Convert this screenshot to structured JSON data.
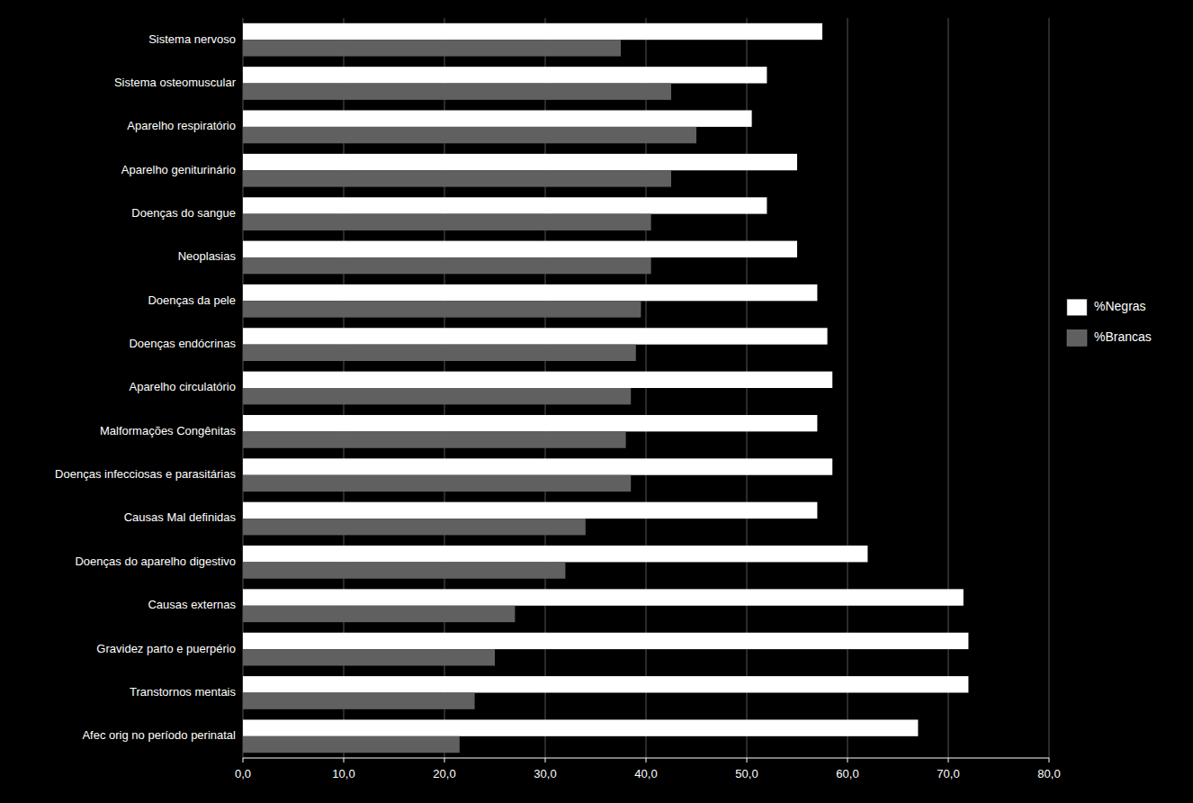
{
  "chart_data": {
    "type": "bar",
    "orientation": "horizontal",
    "categories": [
      "Sistema nervoso",
      "Sistema osteomuscular",
      "Aparelho respiratório",
      "Aparelho geniturinário",
      "Doenças do sangue",
      "Neoplasias",
      "Doenças da pele",
      "Doenças endócrinas",
      "Aparelho circulatório",
      "Malformações Congênitas",
      "Doenças infecciosas e parasitárias",
      "Causas Mal definidas",
      "Doenças do aparelho digestivo",
      "Causas externas",
      "Gravidez parto e puerpério",
      "Transtornos mentais",
      "Afec orig no período perinatal"
    ],
    "series": [
      {
        "name": "%Negras",
        "color": "#ffffff",
        "values": [
          57.5,
          52.0,
          50.5,
          55.0,
          52.0,
          55.0,
          57.0,
          58.0,
          58.5,
          57.0,
          58.5,
          57.0,
          62.0,
          71.5,
          72.0,
          72.0,
          67.0
        ]
      },
      {
        "name": "%Brancas",
        "color": "#606060",
        "values": [
          37.5,
          42.5,
          45.0,
          42.5,
          40.5,
          40.5,
          39.5,
          39.0,
          38.5,
          38.0,
          38.5,
          34.0,
          32.0,
          27.0,
          25.0,
          23.0,
          21.5
        ]
      }
    ],
    "xlim": [
      0,
      80
    ],
    "xticks": [
      {
        "value": 0,
        "label": "0,0"
      },
      {
        "value": 10,
        "label": "10,0"
      },
      {
        "value": 20,
        "label": "20,0"
      },
      {
        "value": 30,
        "label": "30,0"
      },
      {
        "value": 40,
        "label": "40,0"
      },
      {
        "value": 50,
        "label": "50,0"
      },
      {
        "value": 60,
        "label": "60,0"
      },
      {
        "value": 70,
        "label": "70,0"
      },
      {
        "value": 80,
        "label": "80,0"
      }
    ],
    "grid": true,
    "legend": "right"
  }
}
